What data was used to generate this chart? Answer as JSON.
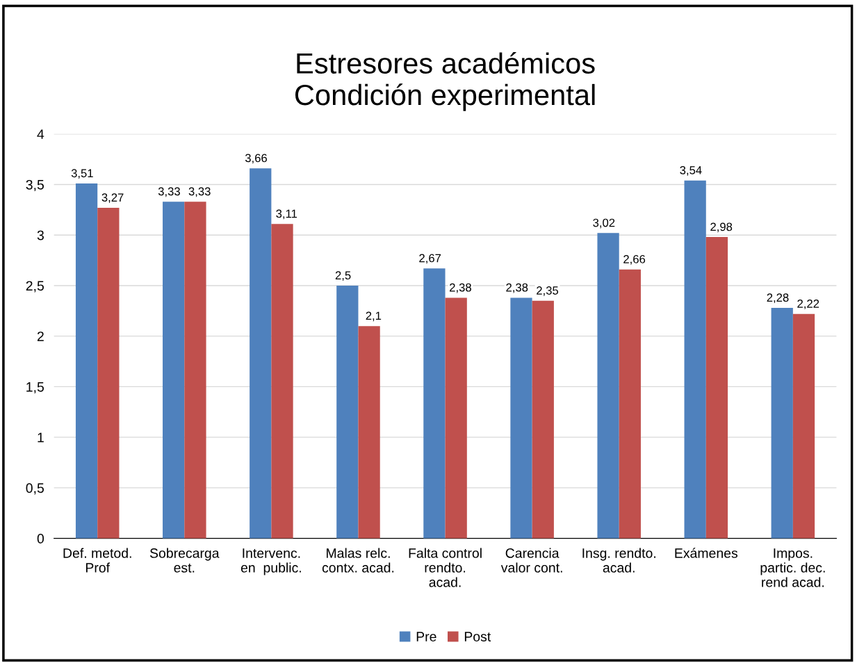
{
  "chart_data": {
    "type": "bar",
    "title": "Estresores académicos\nCondición experimental",
    "categories": [
      "Def. metod.\nProf",
      "Sobrecarga\nest.",
      "Intervenc.\nen  public.",
      "Malas relc.\ncontx. acad.",
      "Falta control\nrendto.\nacad.",
      "Carencia\nvalor cont.",
      "Insg. rendto.\nacad.",
      "Exámenes",
      "Impos.\npartic. dec.\nrend acad."
    ],
    "series": [
      {
        "name": "Pre",
        "color": "#4f81bd",
        "values": [
          3.51,
          3.33,
          3.66,
          2.5,
          2.67,
          2.38,
          3.02,
          3.54,
          2.28
        ],
        "value_labels": [
          "3,51",
          "3,33",
          "3,66",
          "2,5",
          "2,67",
          "2,38",
          "3,02",
          "3,54",
          "2,28"
        ]
      },
      {
        "name": "Post",
        "color": "#c0504d",
        "values": [
          3.27,
          3.33,
          3.11,
          2.1,
          2.38,
          2.35,
          2.66,
          2.98,
          2.22
        ],
        "value_labels": [
          "3,27",
          "3,33",
          "3,11",
          "2,1",
          "2,38",
          "2,35",
          "2,66",
          "2,98",
          "2,22"
        ]
      }
    ],
    "ylim": [
      0,
      4
    ],
    "yticks": [
      0,
      {
        "value": 0.5,
        "label": "0,5"
      },
      1,
      {
        "value": 1.5,
        "label": "1,5"
      },
      2,
      {
        "value": 2.5,
        "label": "2,5"
      },
      3,
      {
        "value": 3.5,
        "label": "3,5"
      },
      4
    ],
    "grid": "y",
    "legend": "bottom"
  }
}
